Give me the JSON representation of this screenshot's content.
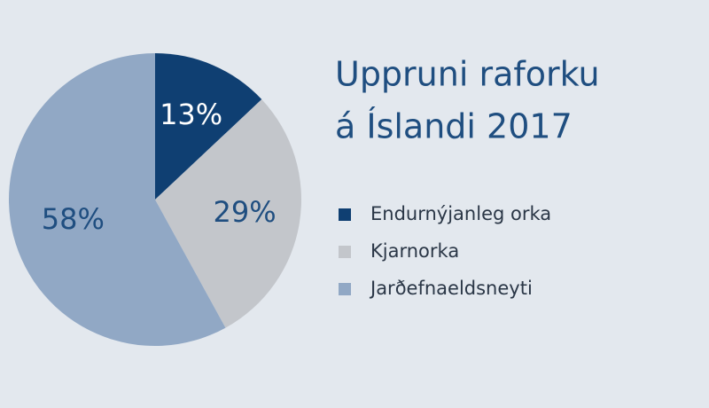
{
  "chart_data": {
    "type": "pie",
    "title": [
      "Uppruni raforku",
      "á Íslandi 2017"
    ],
    "categories": [
      "Endurnýjanleg orka",
      "Kjarnorka",
      "Jarðefnaeldsneyti"
    ],
    "values": [
      13,
      29,
      58
    ],
    "value_labels": [
      "13%",
      "29%",
      "58%"
    ],
    "colors": [
      "#0f3f72",
      "#c3c6cb",
      "#91a8c5"
    ],
    "legend": "right"
  }
}
